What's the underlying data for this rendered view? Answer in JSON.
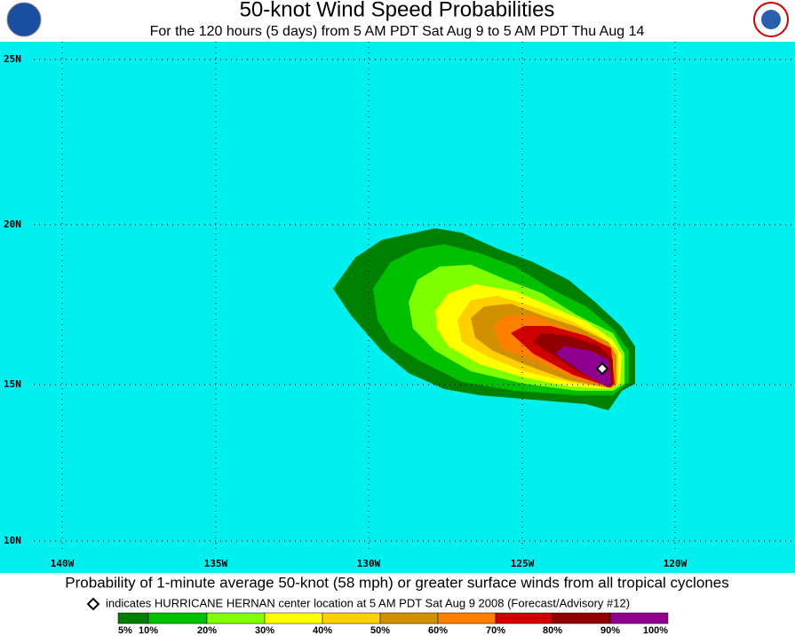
{
  "header": {
    "title": "50-knot Wind Speed Probabilities",
    "subtitle": "For the 120 hours (5 days) from 5 AM PDT Sat Aug 9 to 5 AM PDT Thu Aug 14"
  },
  "map": {
    "lat_labels": [
      "25N",
      "20N",
      "15N",
      "10N"
    ],
    "lon_labels": [
      "140W",
      "135W",
      "130W",
      "125W",
      "120W"
    ]
  },
  "footer": {
    "caption": "Probability of 1-minute average 50-knot (58 mph) or greater surface winds from all tropical cyclones",
    "marker_note": "indicates HURRICANE HERNAN center location at 5 AM PDT Sat Aug 9 2008 (Forecast/Advisory #12)"
  },
  "legend": {
    "colors": [
      "#008000",
      "#00c000",
      "#80ff00",
      "#ffff00",
      "#ffd000",
      "#d09000",
      "#ff8000",
      "#d00000",
      "#900000",
      "#900090"
    ],
    "labels": [
      "5%",
      "10%",
      "20%",
      "30%",
      "40%",
      "50%",
      "60%",
      "70%",
      "80%",
      "90%",
      "100%"
    ]
  }
}
